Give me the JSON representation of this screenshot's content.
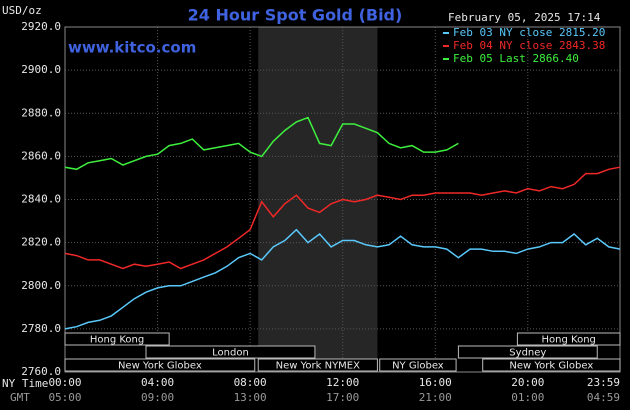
{
  "chart_data": {
    "type": "line",
    "title": "24 Hour Spot Gold (Bid)",
    "subtitle": "February 05, 2025 17:14",
    "source": "www.kitco.com",
    "y_label": "USD/oz",
    "x_label": "NY Time",
    "x2_label": "GMT",
    "xlim": [
      0,
      23.983
    ],
    "ylim": [
      2760,
      2920
    ],
    "xticks": [
      {
        "value": 0,
        "label": "00:00"
      },
      {
        "value": 4,
        "label": "04:00"
      },
      {
        "value": 8,
        "label": "08:00"
      },
      {
        "value": 12,
        "label": "12:00"
      },
      {
        "value": 16,
        "label": "16:00"
      },
      {
        "value": 20,
        "label": "20:00"
      },
      {
        "value": 23.983,
        "label": "23:59"
      }
    ],
    "x2ticks": [
      {
        "value": 0,
        "label": "05:00"
      },
      {
        "value": 4,
        "label": "09:00"
      },
      {
        "value": 8,
        "label": "13:00"
      },
      {
        "value": 12,
        "label": "17:00"
      },
      {
        "value": 16,
        "label": "21:00"
      },
      {
        "value": 20,
        "label": "01:00"
      },
      {
        "value": 23.983,
        "label": "04:59"
      }
    ],
    "yticks": [
      {
        "value": 2760,
        "label": "2760.0"
      },
      {
        "value": 2780,
        "label": "2780.0"
      },
      {
        "value": 2800,
        "label": "2800.0"
      },
      {
        "value": 2820,
        "label": "2820.0"
      },
      {
        "value": 2840,
        "label": "2840.0"
      },
      {
        "value": 2860,
        "label": "2860.0"
      },
      {
        "value": 2880,
        "label": "2880.0"
      },
      {
        "value": 2900,
        "label": "2900.0"
      },
      {
        "value": 2920,
        "label": "2920.0"
      }
    ],
    "grid": true,
    "x": [
      0,
      0.5,
      1,
      1.5,
      2,
      2.5,
      3,
      3.5,
      4,
      4.5,
      5,
      5.5,
      6,
      6.5,
      7,
      7.5,
      8,
      8.5,
      9,
      9.5,
      10,
      10.5,
      11,
      11.5,
      12,
      12.5,
      13,
      13.5,
      14,
      14.5,
      15,
      15.5,
      16,
      16.5,
      17,
      17.5,
      18,
      18.5,
      19,
      19.5,
      20,
      20.5,
      21,
      21.5,
      22,
      22.5,
      23,
      23.5,
      23.983
    ],
    "series": [
      {
        "name": "Feb 03 NY close 2815.20",
        "color": "#5ac8fa",
        "values": [
          2780,
          2781,
          2783,
          2784,
          2786,
          2790,
          2794,
          2797,
          2799,
          2800,
          2800,
          2802,
          2804,
          2806,
          2809,
          2813,
          2815,
          2812,
          2818,
          2821,
          2826,
          2820,
          2824,
          2818,
          2821,
          2821,
          2819,
          2818,
          2819,
          2823,
          2819,
          2818,
          2818,
          2817,
          2813,
          2817,
          2817,
          2816,
          2816,
          2815,
          2817,
          2818,
          2820,
          2820,
          2824,
          2819,
          2822,
          2818,
          2817
        ]
      },
      {
        "name": "Feb 04 NY close 2843.38",
        "color": "#f02828",
        "values": [
          2815,
          2814,
          2812,
          2812,
          2810,
          2808,
          2810,
          2809,
          2810,
          2811,
          2808,
          2810,
          2812,
          2815,
          2818,
          2822,
          2826,
          2839,
          2832,
          2838,
          2842,
          2836,
          2834,
          2838,
          2840,
          2839,
          2840,
          2842,
          2841,
          2840,
          2842,
          2842,
          2843,
          2843,
          2843,
          2843,
          2842,
          2843,
          2844,
          2843,
          2845,
          2844,
          2846,
          2845,
          2847,
          2852,
          2852,
          2854,
          2855
        ]
      },
      {
        "name": "Feb 05 Last 2866.40",
        "color": "#3ef03e",
        "values": [
          2855,
          2854,
          2857,
          2858,
          2859,
          2856,
          2858,
          2860,
          2861,
          2865,
          2866,
          2868,
          2863,
          2864,
          2865,
          2866,
          2862,
          2860,
          2867,
          2872,
          2876,
          2878,
          2866,
          2865,
          2875,
          2875,
          2873,
          2871,
          2866,
          2864,
          2865,
          2862,
          2862,
          2863,
          2866,
          null,
          null,
          null,
          null,
          null,
          null,
          null,
          null,
          null,
          null,
          null,
          null,
          null,
          null
        ]
      }
    ],
    "sessions": [
      {
        "label": "Hong Kong",
        "start": 0,
        "end": 4.5
      },
      {
        "label": "London",
        "start": 3.5,
        "end": 10.8
      },
      {
        "label": "New York Globex",
        "start": 0,
        "end": 8.2
      },
      {
        "label": "New York NYMEX",
        "start": 8.35,
        "end": 13.5
      },
      {
        "label": "NY Globex",
        "start": 13.6,
        "end": 16.9
      },
      {
        "label": "Sydney",
        "start": 17,
        "end": 23
      },
      {
        "label": "Hong Kong",
        "start": 19.55,
        "end": 23.983
      },
      {
        "label": "New York Globex",
        "start": 18.05,
        "end": 23.983
      }
    ]
  }
}
